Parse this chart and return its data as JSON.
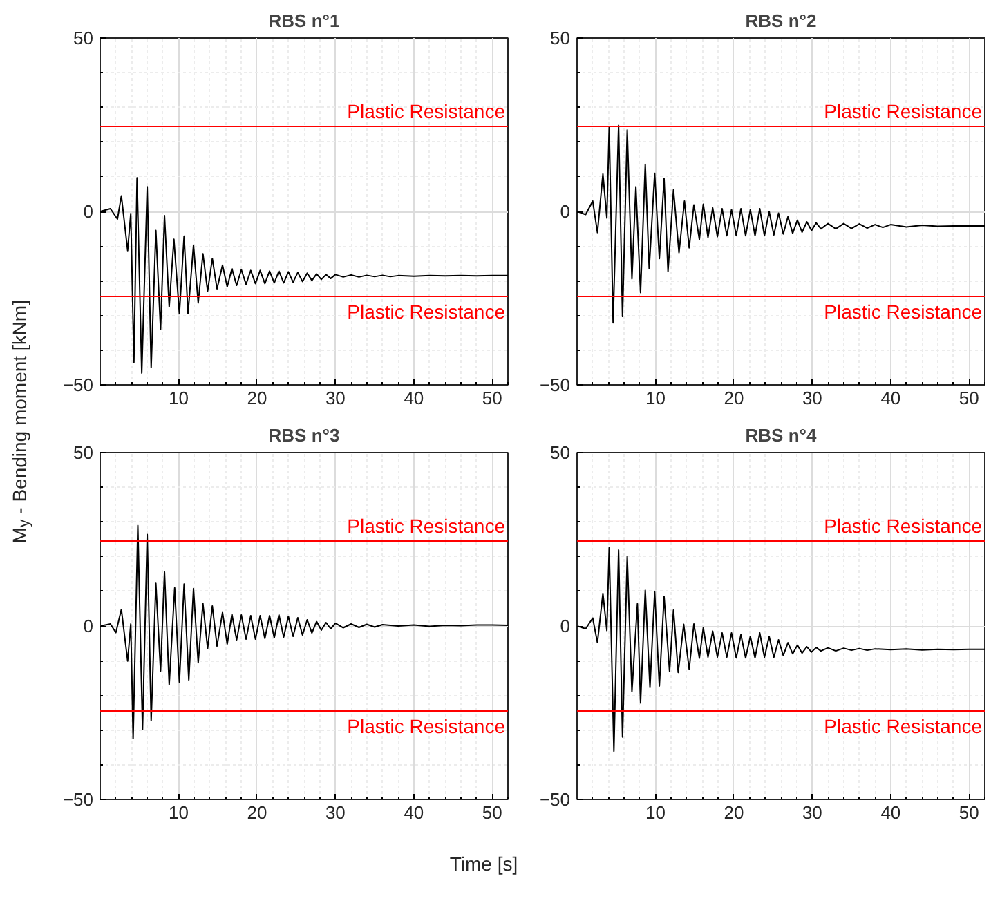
{
  "chart_data": [
    {
      "type": "line",
      "title": "RBS n°1",
      "ylabel": "M$_{y}$ - Bending moment [kNm]",
      "xlim": [
        0,
        52
      ],
      "ylim": [
        -50,
        50
      ],
      "xticks": [
        10,
        20,
        30,
        40,
        50
      ],
      "yticks": [
        -50,
        0,
        50
      ],
      "grid": true,
      "series": [
        {
          "color": "#000000",
          "x": [
            0,
            1.3,
            2.2,
            2.7,
            3.5,
            3.9,
            4.3,
            4.7,
            5.3,
            6.0,
            6.5,
            7.1,
            7.7,
            8.2,
            8.8,
            9.4,
            10.1,
            10.7,
            11.2,
            11.9,
            12.5,
            13.1,
            13.7,
            14.3,
            14.9,
            15.6,
            16.2,
            16.8,
            17.4,
            18.0,
            18.6,
            19.2,
            19.8,
            20.4,
            21.0,
            21.6,
            22.2,
            22.8,
            23.4,
            24.0,
            24.6,
            25.2,
            25.8,
            26.4,
            27.0,
            27.6,
            28.2,
            28.8,
            29.4,
            30.0,
            31,
            32,
            33,
            34,
            35,
            36,
            37,
            38,
            40,
            42,
            44,
            46,
            48,
            50,
            52
          ],
          "values": [
            0,
            0.8,
            -2.2,
            4.5,
            -11.3,
            -0.6,
            -43.5,
            9.7,
            -46.6,
            7.1,
            -45,
            -5.5,
            -34,
            -1.2,
            -27.5,
            -8,
            -29.5,
            -7.1,
            -29.5,
            -9.7,
            -26.4,
            -12.2,
            -23,
            -13.6,
            -22.3,
            -15.5,
            -21.7,
            -16.5,
            -21.3,
            -16.8,
            -21.0,
            -17.0,
            -20.8,
            -17.0,
            -20.8,
            -17.2,
            -20.6,
            -17.2,
            -20.6,
            -17.4,
            -20.4,
            -17.6,
            -20.2,
            -17.8,
            -19.9,
            -18.0,
            -19.6,
            -18.2,
            -19.3,
            -18.2,
            -18.9,
            -18.3,
            -18.9,
            -18.4,
            -18.8,
            -18.4,
            -18.8,
            -18.5,
            -18.7,
            -18.5,
            -18.6,
            -18.5,
            -18.6,
            -18.5,
            -18.5
          ]
        }
      ],
      "ref_lines": [
        {
          "axis": "y",
          "value": 24.5,
          "label": "Plastic Resistance",
          "color": "#ff0000"
        },
        {
          "axis": "y",
          "value": -24.5,
          "label": "Plastic Resistance",
          "color": "#ff0000"
        }
      ]
    },
    {
      "type": "line",
      "title": "RBS n°2",
      "xlim": [
        0,
        52
      ],
      "ylim": [
        -50,
        50
      ],
      "xticks": [
        10,
        20,
        30,
        40,
        50
      ],
      "yticks": [
        -50,
        0,
        50
      ],
      "grid": true,
      "series": [
        {
          "color": "#000000",
          "x": [
            0,
            1.1,
            2.0,
            2.6,
            3.3,
            3.8,
            4.1,
            4.6,
            5.3,
            5.8,
            6.4,
            7.0,
            7.5,
            8.1,
            8.7,
            9.2,
            9.9,
            10.5,
            11.1,
            11.6,
            12.3,
            13.0,
            13.7,
            14.3,
            14.9,
            15.6,
            16.1,
            16.7,
            17.3,
            17.9,
            18.5,
            19.1,
            19.7,
            20.3,
            20.9,
            21.5,
            22.1,
            22.7,
            23.3,
            23.9,
            24.5,
            25.1,
            25.7,
            26.3,
            26.9,
            27.5,
            28.1,
            28.7,
            29.3,
            29.9,
            30.5,
            31.1,
            32,
            33,
            34,
            35,
            36,
            37,
            38,
            39,
            40,
            42,
            44,
            46,
            48,
            52
          ],
          "values": [
            0,
            -0.9,
            3,
            -6.1,
            10.8,
            -1.9,
            24.4,
            -32.1,
            24.8,
            -30.3,
            23.5,
            -19.4,
            7.1,
            -23.4,
            13.6,
            -16.5,
            11,
            -13.6,
            9.5,
            -17.3,
            6.2,
            -11.9,
            3,
            -10.5,
            1.9,
            -8.1,
            2.1,
            -7.5,
            1.0,
            -7.3,
            0.8,
            -7.0,
            0.5,
            -7.0,
            0.8,
            -7.0,
            0.5,
            -7.0,
            0.8,
            -7.0,
            0.0,
            -6.8,
            -0.5,
            -6.5,
            -1.5,
            -6.3,
            -2.5,
            -6.0,
            -3.0,
            -5.5,
            -3.3,
            -5.0,
            -3.5,
            -5.0,
            -3.5,
            -4.9,
            -3.6,
            -4.8,
            -3.8,
            -4.6,
            -3.8,
            -4.5,
            -4.0,
            -4.3,
            -4.2,
            -4.2
          ]
        }
      ],
      "ref_lines": [
        {
          "axis": "y",
          "value": 24.5,
          "label": "Plastic Resistance",
          "color": "#ff0000"
        },
        {
          "axis": "y",
          "value": -24.5,
          "label": "Plastic Resistance",
          "color": "#ff0000"
        }
      ]
    },
    {
      "type": "line",
      "title": "RBS n°3",
      "xlabel": "Time [s]",
      "xlim": [
        0,
        52
      ],
      "ylim": [
        -50,
        50
      ],
      "xticks": [
        10,
        20,
        30,
        40,
        50
      ],
      "yticks": [
        -50,
        0,
        50
      ],
      "grid": true,
      "series": [
        {
          "color": "#000000",
          "x": [
            0,
            1.3,
            2.0,
            2.7,
            3.5,
            3.9,
            4.2,
            4.8,
            5.4,
            6.0,
            6.5,
            7.1,
            7.7,
            8.2,
            8.8,
            9.5,
            10.1,
            10.7,
            11.3,
            11.9,
            12.5,
            13.1,
            13.7,
            14.3,
            14.9,
            15.6,
            16.2,
            16.8,
            17.4,
            18.0,
            18.6,
            19.2,
            19.8,
            20.4,
            21.0,
            21.6,
            22.2,
            22.8,
            23.4,
            24.0,
            24.6,
            25.2,
            25.8,
            26.4,
            27.0,
            27.6,
            28.2,
            28.8,
            29.4,
            30.0,
            31,
            32,
            33,
            34,
            35,
            36,
            38,
            40,
            42,
            44,
            46,
            48,
            50,
            52
          ],
          "values": [
            0,
            0.6,
            -1.9,
            4.8,
            -10.1,
            0.6,
            -32.5,
            29,
            -29.9,
            26.4,
            -27.3,
            12.3,
            -13,
            15.6,
            -16.9,
            11,
            -16.2,
            12.1,
            -15.6,
            10.8,
            -10.6,
            6.5,
            -6.5,
            5.8,
            -5.8,
            3.9,
            -5.2,
            3.4,
            -4.0,
            3.2,
            -3.8,
            3.0,
            -3.8,
            3.0,
            -3.6,
            3.0,
            -3.4,
            3.2,
            -3.2,
            2.8,
            -3.0,
            2.4,
            -2.6,
            1.8,
            -2.0,
            1.3,
            -1.2,
            1.0,
            -0.8,
            0.8,
            -0.5,
            0.6,
            -0.4,
            0.5,
            -0.3,
            0.4,
            0,
            0.3,
            -0.1,
            0.2,
            0.1,
            0.3,
            0.3,
            0.2
          ]
        }
      ],
      "ref_lines": [
        {
          "axis": "y",
          "value": 24.5,
          "label": "Plastic Resistance",
          "color": "#ff0000"
        },
        {
          "axis": "y",
          "value": -24.5,
          "label": "Plastic Resistance",
          "color": "#ff0000"
        }
      ]
    },
    {
      "type": "line",
      "title": "RBS n°4",
      "xlim": [
        0,
        52
      ],
      "ylim": [
        -50,
        50
      ],
      "xticks": [
        10,
        20,
        30,
        40,
        50
      ],
      "yticks": [
        -50,
        0,
        50
      ],
      "grid": true,
      "series": [
        {
          "color": "#000000",
          "x": [
            0,
            1.1,
            2.0,
            2.6,
            3.3,
            3.8,
            4.1,
            4.7,
            5.3,
            5.8,
            6.4,
            7.0,
            7.7,
            8.1,
            8.7,
            9.3,
            9.9,
            10.5,
            11.1,
            11.8,
            12.3,
            12.9,
            13.6,
            14.3,
            14.9,
            15.6,
            16.1,
            16.7,
            17.3,
            17.9,
            18.5,
            19.1,
            19.7,
            20.3,
            20.9,
            21.5,
            22.1,
            22.7,
            23.3,
            23.9,
            24.5,
            25.1,
            25.7,
            26.3,
            26.9,
            27.5,
            28.1,
            28.7,
            29.3,
            29.9,
            30.5,
            31.1,
            32,
            33,
            34,
            35,
            36,
            37,
            38,
            40,
            42,
            44,
            46,
            48,
            50,
            52
          ],
          "values": [
            0,
            -0.8,
            2.3,
            -4.8,
            9.4,
            -1.3,
            22.6,
            -36.1,
            21.9,
            -32,
            20.1,
            -18.9,
            6.4,
            -22.2,
            10.3,
            -17.7,
            9.8,
            -17.3,
            8.5,
            -13.1,
            4.6,
            -13.4,
            0.5,
            -12.5,
            0.6,
            -9.3,
            -0.5,
            -9.0,
            -1.5,
            -9.0,
            -2.0,
            -9.0,
            -2.0,
            -9.2,
            -2.5,
            -9.2,
            -3.0,
            -9.2,
            -2.0,
            -9.0,
            -3.0,
            -9.0,
            -4.0,
            -8.5,
            -4.8,
            -8.0,
            -5.5,
            -7.8,
            -6.0,
            -7.5,
            -6.2,
            -7.2,
            -6.3,
            -7.2,
            -6.4,
            -7.0,
            -6.5,
            -7.0,
            -6.6,
            -6.8,
            -6.6,
            -6.9,
            -6.7,
            -6.8,
            -6.7,
            -6.7
          ]
        }
      ],
      "ref_lines": [
        {
          "axis": "y",
          "value": 24.5,
          "label": "Plastic Resistance",
          "color": "#ff0000"
        },
        {
          "axis": "y",
          "value": -24.5,
          "label": "Plastic Resistance",
          "color": "#ff0000"
        }
      ]
    }
  ]
}
